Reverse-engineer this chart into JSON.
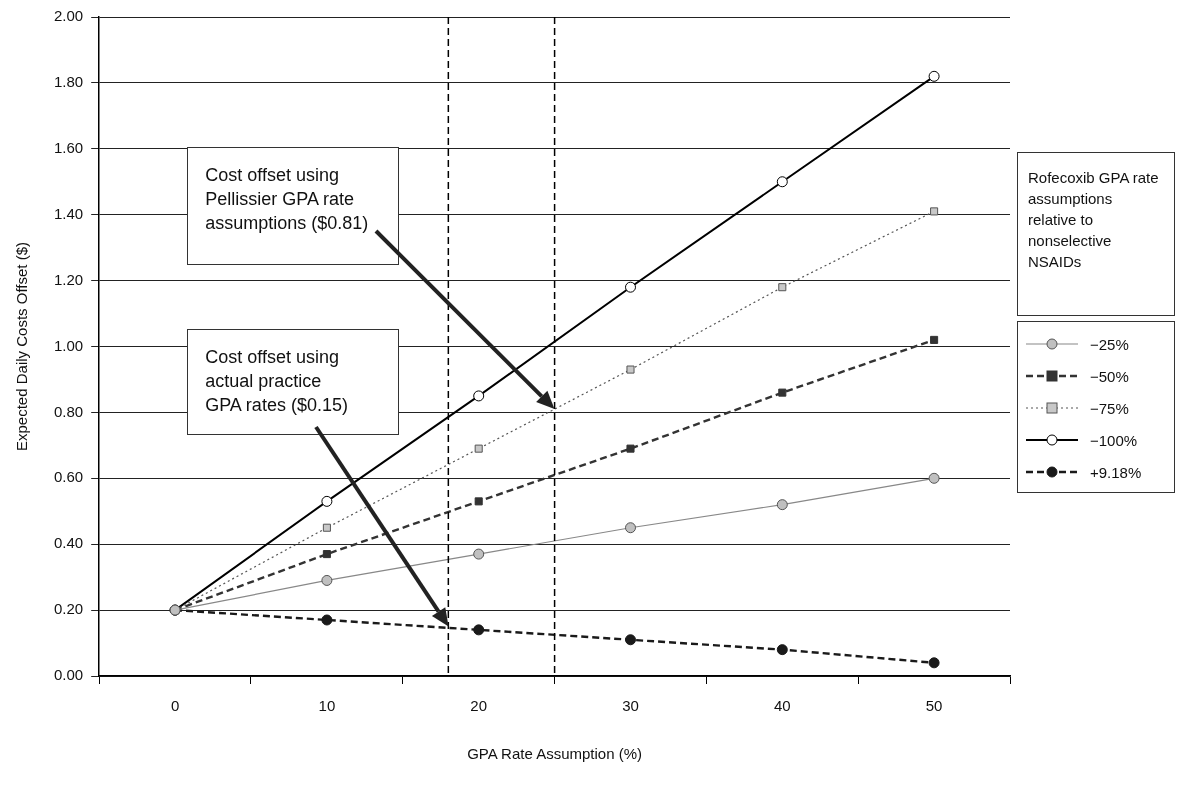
{
  "chart_data": {
    "type": "line",
    "xlabel": "GPA Rate Assumption (%)",
    "ylabel": "Expected Daily Costs Offset ($)",
    "legend_title": "Rofecoxib GPA rate assumptions relative to nonselective NSAIDs",
    "legend": "right",
    "x": [
      0,
      10,
      20,
      30,
      40,
      50
    ],
    "xlim": [
      -5,
      55
    ],
    "xticks": [
      {
        "value": -5,
        "label": null
      },
      0,
      {
        "value": 5,
        "label": null
      },
      10,
      {
        "value": 15,
        "label": null
      },
      20,
      {
        "value": 25,
        "label": null
      },
      30,
      {
        "value": 35,
        "label": null
      },
      40,
      {
        "value": 45,
        "label": null
      },
      50,
      {
        "value": 55,
        "label": null
      }
    ],
    "ylim": [
      0,
      2
    ],
    "yticks": [
      {
        "value": 0,
        "label": "0.00"
      },
      {
        "value": 0.2,
        "label": "0.20"
      },
      {
        "value": 0.4,
        "label": "0.40"
      },
      {
        "value": 0.6,
        "label": "0.60"
      },
      {
        "value": 0.8,
        "label": "0.80"
      },
      {
        "value": 1,
        "label": "1.00"
      },
      {
        "value": 1.2,
        "label": "1.20"
      },
      {
        "value": 1.4,
        "label": "1.40"
      },
      {
        "value": 1.6,
        "label": "1.60"
      },
      {
        "value": 1.8,
        "label": "1.80"
      },
      {
        "value": 2,
        "label": "2.00"
      }
    ],
    "grid": "y",
    "series": [
      {
        "name": "−25%",
        "color": "#c0c0c0",
        "marker": "circle",
        "line_style": "solid",
        "values": [
          0.2,
          0.29,
          0.37,
          0.45,
          0.52,
          0.6
        ]
      },
      {
        "name": "−50%",
        "color": "#333333",
        "marker": "square",
        "line_style": "dashed",
        "values": [
          0.2,
          0.37,
          0.53,
          0.69,
          0.86,
          1.02
        ]
      },
      {
        "name": "−75%",
        "color": "#c8c8c8",
        "marker": "square",
        "line_style": "dotted",
        "values": [
          0.2,
          0.45,
          0.69,
          0.93,
          1.18,
          1.41
        ]
      },
      {
        "name": "−100%",
        "color": "#ffffff",
        "marker": "circle",
        "line_style": "solid",
        "values": [
          0.2,
          0.53,
          0.85,
          1.18,
          1.5,
          1.82
        ]
      },
      {
        "name": "+9.18%",
        "color": "#1a1a1a",
        "marker": "circle",
        "line_style": "dashed",
        "values": [
          0.2,
          0.17,
          0.14,
          0.11,
          0.08,
          0.04
        ]
      }
    ],
    "ref_lines": [
      {
        "axis": "x",
        "value": 18,
        "color": "#000000",
        "line_style": "dashed"
      },
      {
        "axis": "x",
        "value": 25,
        "color": "#000000",
        "line_style": "dashed"
      }
    ],
    "annotations": [
      "Cost offset using\nPellissier GPA rate\nassumptions ($0.81)",
      "Cost offset using\nactual practice\nGPA rates ($0.15)"
    ]
  }
}
